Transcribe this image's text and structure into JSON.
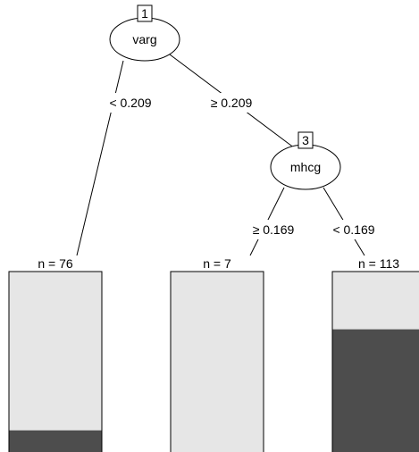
{
  "nodes": [
    {
      "id": "1",
      "variable": "varg"
    },
    {
      "id": "3",
      "variable": "mhcg"
    }
  ],
  "splits": [
    {
      "from": "1",
      "to": "leaf-left",
      "label": "< 0.209"
    },
    {
      "from": "1",
      "to": "3",
      "label": "≥ 0.209"
    },
    {
      "from": "3",
      "to": "leaf-middle",
      "label": "≥ 0.169"
    },
    {
      "from": "3",
      "to": "leaf-right",
      "label": "< 0.169"
    }
  ],
  "leaves": [
    {
      "key": "leaf-left",
      "n_label": "n = 76",
      "dark_fraction": 0.12
    },
    {
      "key": "leaf-middle",
      "n_label": "n = 7",
      "dark_fraction": 0.0
    },
    {
      "key": "leaf-right",
      "n_label": "n = 113",
      "dark_fraction": 0.68
    }
  ],
  "colors": {
    "light": "#e6e6e6",
    "dark": "#4d4d4d",
    "line": "#000000"
  }
}
